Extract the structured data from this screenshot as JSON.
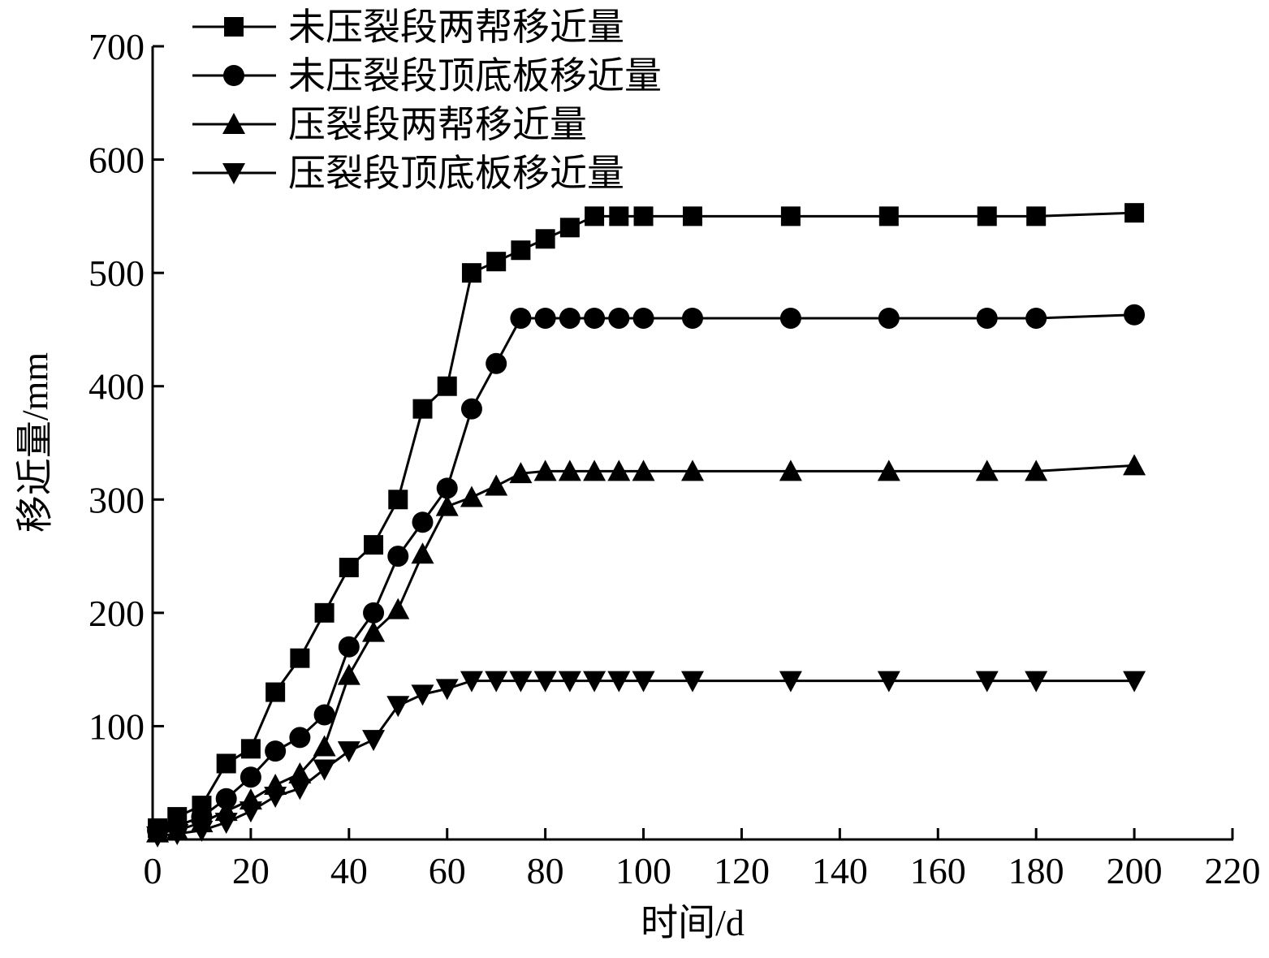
{
  "chart_data": {
    "type": "line",
    "x_label": "时间/d",
    "y_label": "移近量/mm",
    "x": [
      1,
      5,
      10,
      15,
      20,
      25,
      30,
      35,
      40,
      45,
      50,
      55,
      60,
      65,
      70,
      75,
      80,
      85,
      90,
      95,
      100,
      110,
      130,
      150,
      170,
      180,
      200
    ],
    "series": [
      {
        "name": "未压裂段两帮移近量",
        "color": "#000000",
        "marker": "square",
        "values": [
          10,
          20,
          30,
          67,
          80,
          130,
          160,
          200,
          240,
          260,
          300,
          380,
          400,
          500,
          510,
          520,
          530,
          540,
          550,
          550,
          550,
          550,
          550,
          550,
          550,
          550,
          553
        ]
      },
      {
        "name": "未压裂段顶底板移近量",
        "color": "#000000",
        "marker": "circle",
        "values": [
          8,
          12,
          20,
          36,
          55,
          78,
          90,
          110,
          170,
          200,
          250,
          280,
          310,
          380,
          420,
          460,
          460,
          460,
          460,
          460,
          460,
          460,
          460,
          460,
          460,
          460,
          463
        ]
      },
      {
        "name": "压裂段两帮移近量",
        "color": "#000000",
        "marker": "triangle-up",
        "values": [
          6,
          8,
          15,
          25,
          35,
          48,
          58,
          82,
          145,
          183,
          203,
          252,
          294,
          302,
          312,
          323,
          325,
          325,
          325,
          325,
          325,
          325,
          325,
          325,
          325,
          325,
          330
        ]
      },
      {
        "name": "压裂段顶底板移近量",
        "color": "#000000",
        "marker": "triangle-down",
        "values": [
          3,
          5,
          8,
          15,
          25,
          38,
          45,
          62,
          78,
          88,
          118,
          128,
          133,
          140,
          140,
          140,
          140,
          140,
          140,
          140,
          140,
          140,
          140,
          140,
          140,
          140,
          140
        ]
      }
    ],
    "xlim": [
      0,
      220
    ],
    "xticks": [
      0,
      20,
      40,
      60,
      80,
      100,
      120,
      140,
      160,
      180,
      200,
      220
    ],
    "ylim": [
      0,
      700
    ],
    "yticks": [
      100,
      200,
      300,
      400,
      500,
      600,
      700
    ],
    "legend": "top-left"
  }
}
